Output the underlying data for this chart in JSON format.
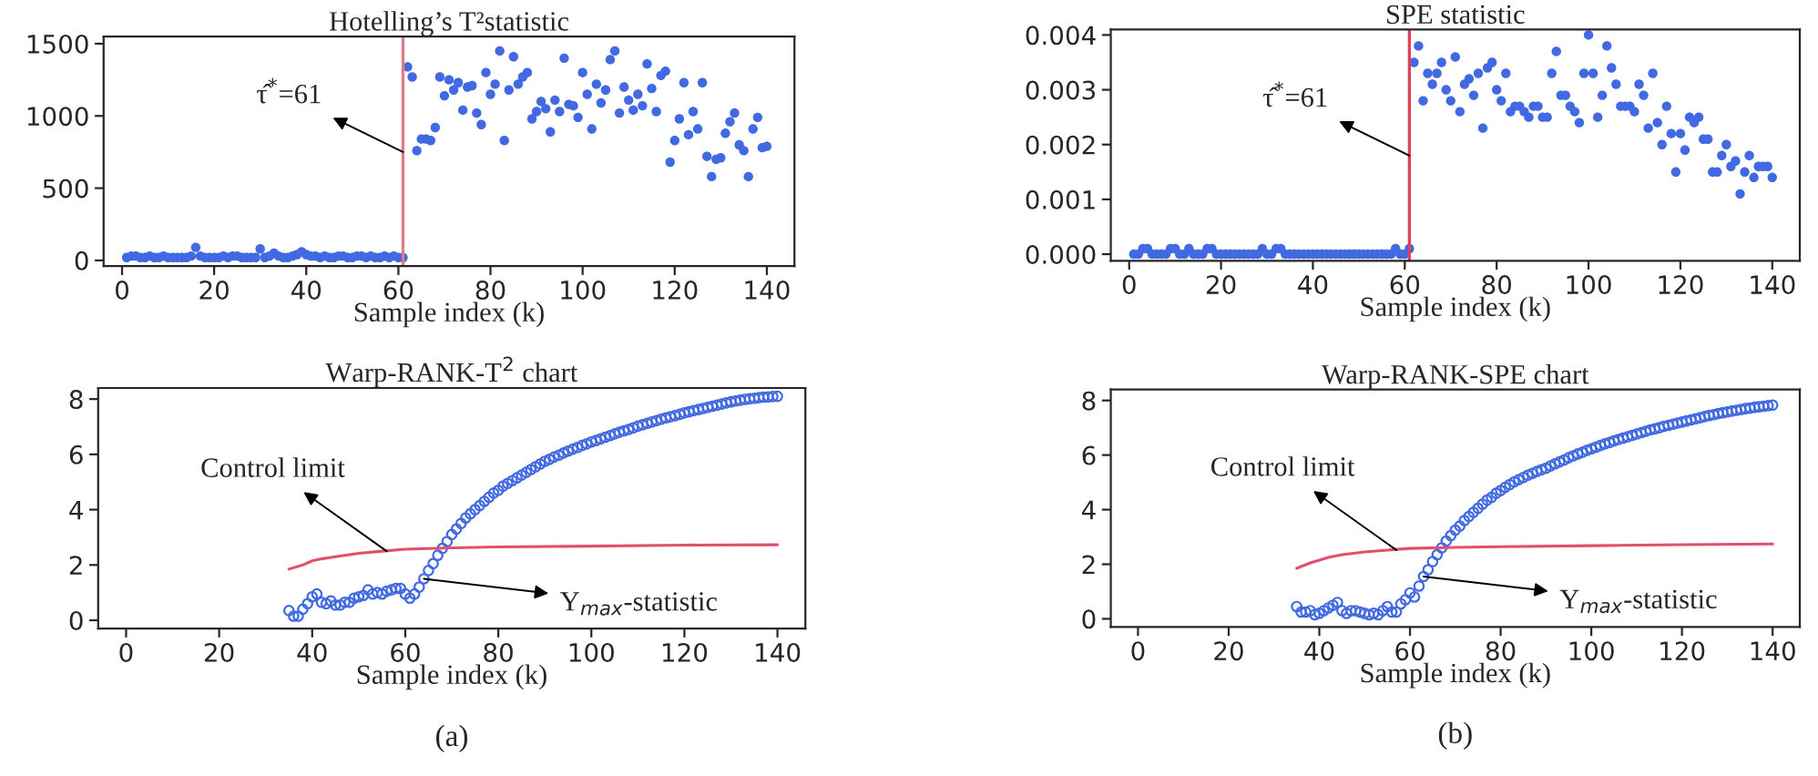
{
  "chart_data": [
    {
      "type": "scatter",
      "title": "Hotelling’s T²statistic",
      "xlabel": "Sample index (k)",
      "marker": "circle",
      "x": [
        1,
        2,
        3,
        4,
        5,
        6,
        7,
        8,
        9,
        10,
        11,
        12,
        13,
        14,
        15,
        16,
        17,
        18,
        19,
        20,
        21,
        22,
        23,
        24,
        25,
        26,
        27,
        28,
        29,
        30,
        31,
        32,
        33,
        34,
        35,
        36,
        37,
        38,
        39,
        40,
        41,
        42,
        43,
        44,
        45,
        46,
        47,
        48,
        49,
        50,
        51,
        52,
        53,
        54,
        55,
        56,
        57,
        58,
        59,
        60,
        61,
        62,
        63,
        64,
        65,
        66,
        67,
        68,
        69,
        70,
        71,
        72,
        73,
        74,
        75,
        76,
        77,
        78,
        79,
        80,
        81,
        82,
        83,
        84,
        85,
        86,
        87,
        88,
        89,
        90,
        91,
        92,
        93,
        94,
        95,
        96,
        97,
        98,
        99,
        100,
        101,
        102,
        103,
        104,
        105,
        106,
        107,
        108,
        109,
        110,
        111,
        112,
        113,
        114,
        115,
        116,
        117,
        118,
        119,
        120,
        121,
        122,
        123,
        124,
        125,
        126,
        127,
        128,
        129,
        130,
        131,
        132,
        133,
        134,
        135,
        136,
        137,
        138,
        139,
        140
      ],
      "series": [
        {
          "color": "#4169e1",
          "values": [
            20,
            30,
            30,
            20,
            20,
            30,
            20,
            20,
            30,
            20,
            20,
            20,
            20,
            20,
            30,
            90,
            30,
            20,
            20,
            20,
            20,
            30,
            20,
            30,
            30,
            20,
            20,
            20,
            20,
            80,
            20,
            30,
            50,
            30,
            20,
            20,
            30,
            40,
            60,
            40,
            30,
            30,
            20,
            30,
            20,
            20,
            30,
            30,
            20,
            20,
            30,
            30,
            20,
            30,
            20,
            20,
            30,
            20,
            30,
            20,
            20,
            1340,
            1270,
            760,
            840,
            840,
            830,
            920,
            1270,
            1140,
            1250,
            1180,
            1230,
            1040,
            1200,
            1210,
            1020,
            940,
            1300,
            1150,
            1220,
            1450,
            830,
            1180,
            1410,
            1220,
            1270,
            1300,
            980,
            1030,
            1100,
            1050,
            890,
            1110,
            1030,
            1400,
            1080,
            1070,
            990,
            1300,
            1150,
            910,
            1220,
            1090,
            1180,
            1390,
            1450,
            1020,
            1200,
            1110,
            1040,
            1150,
            1070,
            1360,
            1190,
            1030,
            1280,
            1310,
            680,
            830,
            980,
            1230,
            870,
            1030,
            910,
            1230,
            720,
            580,
            700,
            710,
            880,
            960,
            1020,
            800,
            760,
            580,
            910,
            990,
            780,
            790
          ]
        }
      ],
      "ref_lines": [
        {
          "axis": "x",
          "value": 61,
          "color": "#e07b8a"
        }
      ],
      "annotations": [
        {
          "text": "τ̂$^{*}$=61",
          "x": 61,
          "y": 750
        }
      ],
      "xlim": [
        -4,
        146
      ],
      "xticks": [
        0,
        20,
        40,
        60,
        80,
        100,
        120,
        140
      ],
      "ylim": [
        -40,
        1550
      ],
      "yticks": [
        0,
        500,
        1000,
        1500
      ]
    },
    {
      "type": "scatter",
      "title": "SPE statistic",
      "xlabel": "Sample index (k)",
      "marker": "circle",
      "x": [
        1,
        2,
        3,
        4,
        5,
        6,
        7,
        8,
        9,
        10,
        11,
        12,
        13,
        14,
        15,
        16,
        17,
        18,
        19,
        20,
        21,
        22,
        23,
        24,
        25,
        26,
        27,
        28,
        29,
        30,
        31,
        32,
        33,
        34,
        35,
        36,
        37,
        38,
        39,
        40,
        41,
        42,
        43,
        44,
        45,
        46,
        47,
        48,
        49,
        50,
        51,
        52,
        53,
        54,
        55,
        56,
        57,
        58,
        59,
        60,
        61,
        62,
        63,
        64,
        65,
        66,
        67,
        68,
        69,
        70,
        71,
        72,
        73,
        74,
        75,
        76,
        77,
        78,
        79,
        80,
        81,
        82,
        83,
        84,
        85,
        86,
        87,
        88,
        89,
        90,
        91,
        92,
        93,
        94,
        95,
        96,
        97,
        98,
        99,
        100,
        101,
        102,
        103,
        104,
        105,
        106,
        107,
        108,
        109,
        110,
        111,
        112,
        113,
        114,
        115,
        116,
        117,
        118,
        119,
        120,
        121,
        122,
        123,
        124,
        125,
        126,
        127,
        128,
        129,
        130,
        131,
        132,
        133,
        134,
        135,
        136,
        137,
        138,
        139,
        140
      ],
      "series": [
        {
          "color": "#4169e1",
          "values": [
            0.0,
            0.0,
            0.0001,
            0.0001,
            0.0,
            0.0,
            0.0,
            0.0,
            0.0001,
            0.0001,
            0.0,
            0.0,
            0.0001,
            0.0,
            0.0,
            0.0,
            0.0001,
            0.0001,
            0.0,
            0.0,
            0.0,
            0.0,
            0.0,
            0.0,
            0.0,
            0.0,
            0.0,
            0.0,
            0.0001,
            0.0,
            0.0,
            0.0001,
            0.0001,
            0.0,
            0.0,
            0.0,
            0.0,
            0.0,
            0.0,
            0.0,
            0.0,
            0.0,
            0.0,
            0.0,
            0.0,
            0.0,
            0.0,
            0.0,
            0.0,
            0.0,
            0.0,
            0.0,
            0.0,
            0.0,
            0.0,
            0.0,
            0.0,
            0.0001,
            0.0,
            0.0,
            0.0001,
            0.0035,
            0.0038,
            0.0028,
            0.0033,
            0.0031,
            0.0033,
            0.0035,
            0.003,
            0.0028,
            0.0036,
            0.0026,
            0.0031,
            0.0032,
            0.0029,
            0.0033,
            0.0023,
            0.0034,
            0.0035,
            0.003,
            0.0028,
            0.0033,
            0.0026,
            0.0027,
            0.0027,
            0.0026,
            0.0025,
            0.0027,
            0.0027,
            0.0025,
            0.0025,
            0.0033,
            0.0037,
            0.0029,
            0.0029,
            0.0027,
            0.0026,
            0.0024,
            0.0033,
            0.004,
            0.0033,
            0.0025,
            0.0029,
            0.0038,
            0.0034,
            0.0031,
            0.0027,
            0.0027,
            0.0027,
            0.0026,
            0.0031,
            0.0029,
            0.0023,
            0.0033,
            0.0024,
            0.002,
            0.0027,
            0.0022,
            0.0015,
            0.0022,
            0.0019,
            0.0025,
            0.0024,
            0.0025,
            0.0021,
            0.0021,
            0.0015,
            0.0015,
            0.0018,
            0.002,
            0.0016,
            0.0017,
            0.0011,
            0.0015,
            0.0018,
            0.0014,
            0.0016,
            0.0016,
            0.0016,
            0.0014
          ]
        }
      ],
      "ref_lines": [
        {
          "axis": "x",
          "value": 61,
          "color": "#e0405a"
        }
      ],
      "annotations": [
        {
          "text": "τ̂$^{*}$=61",
          "x": 61,
          "y": 0.0018
        }
      ],
      "xlim": [
        -4,
        146
      ],
      "xticks": [
        0,
        20,
        40,
        60,
        80,
        100,
        120,
        140
      ],
      "ylim": [
        -0.00012,
        0.0041
      ],
      "yticks": [
        {
          "value": 0,
          "label": "0.000"
        },
        {
          "value": 0.001,
          "label": "0.001"
        },
        {
          "value": 0.002,
          "label": "0.002"
        },
        {
          "value": 0.003,
          "label": "0.003"
        },
        {
          "value": 0.004,
          "label": "0.004"
        }
      ]
    },
    {
      "type": "scatter",
      "title": "Warp-RANK-T$^{2}$ chart",
      "xlabel": "Sample index (k)",
      "series": [
        {
          "color": "#4169e1",
          "marker": "circle",
          "x": [
            35,
            36,
            37,
            38,
            39,
            40,
            41,
            42,
            43,
            44,
            45,
            46,
            47,
            48,
            49,
            50,
            51,
            52,
            53,
            54,
            55,
            56,
            57,
            58,
            59,
            60,
            61,
            62,
            63,
            64,
            65,
            66,
            67,
            68,
            69,
            70,
            71,
            72,
            73,
            74,
            75,
            76,
            77,
            78,
            79,
            80,
            81,
            82,
            83,
            84,
            85,
            86,
            87,
            88,
            89,
            90,
            91,
            92,
            93,
            94,
            95,
            96,
            97,
            98,
            99,
            100,
            101,
            102,
            103,
            104,
            105,
            106,
            107,
            108,
            109,
            110,
            111,
            112,
            113,
            114,
            115,
            116,
            117,
            118,
            119,
            120,
            121,
            122,
            123,
            124,
            125,
            126,
            127,
            128,
            129,
            130,
            131,
            132,
            133,
            134,
            135,
            136,
            137,
            138,
            139,
            140
          ],
          "values": [
            0.35,
            0.15,
            0.15,
            0.4,
            0.6,
            0.85,
            0.95,
            0.65,
            0.6,
            0.7,
            0.55,
            0.55,
            0.65,
            0.65,
            0.8,
            0.85,
            0.9,
            1.1,
            0.95,
            1.0,
            0.95,
            1.05,
            1.1,
            1.15,
            1.15,
            0.95,
            0.8,
            0.95,
            1.2,
            1.5,
            1.8,
            2.05,
            2.35,
            2.6,
            2.85,
            3.1,
            3.3,
            3.5,
            3.7,
            3.85,
            4.0,
            4.15,
            4.3,
            4.45,
            4.6,
            4.7,
            4.85,
            4.95,
            5.05,
            5.15,
            5.25,
            5.35,
            5.45,
            5.55,
            5.65,
            5.75,
            5.82,
            5.9,
            5.97,
            6.05,
            6.12,
            6.19,
            6.25,
            6.32,
            6.38,
            6.45,
            6.5,
            6.56,
            6.62,
            6.68,
            6.74,
            6.8,
            6.85,
            6.9,
            6.96,
            7.02,
            7.07,
            7.12,
            7.17,
            7.22,
            7.27,
            7.32,
            7.36,
            7.4,
            7.45,
            7.5,
            7.54,
            7.58,
            7.62,
            7.66,
            7.7,
            7.74,
            7.78,
            7.82,
            7.86,
            7.9,
            7.93,
            7.96,
            7.99,
            8.01,
            8.03,
            8.05,
            8.07,
            8.08,
            8.09,
            8.1
          ]
        },
        {
          "type": "line",
          "color": "#e0506a",
          "line_style": "solid",
          "x": [
            35,
            38,
            40,
            42,
            45,
            50,
            55,
            60,
            70,
            80,
            100,
            120,
            140
          ],
          "values": [
            1.85,
            2.0,
            2.15,
            2.22,
            2.3,
            2.42,
            2.5,
            2.57,
            2.62,
            2.65,
            2.68,
            2.72,
            2.73
          ]
        }
      ],
      "annotations": [
        {
          "text": "Control limit",
          "x": 56,
          "y": 2.5
        },
        {
          "text": "Y$_{max}$-statistic",
          "x": 64,
          "y": 1.5
        },
        "(a)"
      ],
      "xlim": [
        -6,
        146
      ],
      "xticks": [
        0,
        20,
        40,
        60,
        80,
        100,
        120,
        140
      ],
      "ylim": [
        -0.3,
        8.4
      ],
      "yticks": [
        0,
        2,
        4,
        6,
        8
      ]
    },
    {
      "type": "scatter",
      "title": "Warp-RANK-SPE chart",
      "xlabel": "Sample index (k)",
      "series": [
        {
          "color": "#4169e1",
          "marker": "circle",
          "x": [
            35,
            36,
            37,
            38,
            39,
            40,
            41,
            42,
            43,
            44,
            45,
            46,
            47,
            48,
            49,
            50,
            51,
            52,
            53,
            54,
            55,
            56,
            57,
            58,
            59,
            60,
            61,
            62,
            63,
            64,
            65,
            66,
            67,
            68,
            69,
            70,
            71,
            72,
            73,
            74,
            75,
            76,
            77,
            78,
            79,
            80,
            81,
            82,
            83,
            84,
            85,
            86,
            87,
            88,
            89,
            90,
            91,
            92,
            93,
            94,
            95,
            96,
            97,
            98,
            99,
            100,
            101,
            102,
            103,
            104,
            105,
            106,
            107,
            108,
            109,
            110,
            111,
            112,
            113,
            114,
            115,
            116,
            117,
            118,
            119,
            120,
            121,
            122,
            123,
            124,
            125,
            126,
            127,
            128,
            129,
            130,
            131,
            132,
            133,
            134,
            135,
            136,
            137,
            138,
            139,
            140
          ],
          "values": [
            0.45,
            0.25,
            0.25,
            0.3,
            0.15,
            0.2,
            0.3,
            0.4,
            0.5,
            0.6,
            0.3,
            0.2,
            0.3,
            0.3,
            0.25,
            0.2,
            0.15,
            0.2,
            0.15,
            0.3,
            0.45,
            0.25,
            0.25,
            0.55,
            0.7,
            0.95,
            0.8,
            1.2,
            1.55,
            1.8,
            2.1,
            2.35,
            2.6,
            2.85,
            3.05,
            3.25,
            3.4,
            3.6,
            3.75,
            3.9,
            4.05,
            4.2,
            4.35,
            4.45,
            4.6,
            4.7,
            4.82,
            4.92,
            5.02,
            5.1,
            5.18,
            5.26,
            5.33,
            5.4,
            5.46,
            5.52,
            5.6,
            5.68,
            5.75,
            5.82,
            5.9,
            5.97,
            6.04,
            6.1,
            6.17,
            6.23,
            6.29,
            6.35,
            6.41,
            6.46,
            6.52,
            6.57,
            6.62,
            6.67,
            6.72,
            6.77,
            6.82,
            6.87,
            6.92,
            6.96,
            7.0,
            7.05,
            7.09,
            7.13,
            7.17,
            7.21,
            7.25,
            7.29,
            7.33,
            7.37,
            7.41,
            7.45,
            7.48,
            7.52,
            7.55,
            7.58,
            7.61,
            7.64,
            7.67,
            7.7,
            7.72,
            7.75,
            7.77,
            7.79,
            7.81,
            7.83
          ]
        },
        {
          "type": "line",
          "color": "#e0506a",
          "line_style": "solid",
          "x": [
            35,
            38,
            40,
            42,
            45,
            50,
            55,
            60,
            70,
            80,
            100,
            120,
            140
          ],
          "values": [
            1.85,
            2.05,
            2.15,
            2.25,
            2.35,
            2.45,
            2.52,
            2.58,
            2.62,
            2.64,
            2.68,
            2.72,
            2.74
          ]
        }
      ],
      "annotations": [
        {
          "text": "Control limit",
          "x": 57,
          "y": 2.52
        },
        {
          "text": "Y$_{max}$-statistic",
          "x": 63,
          "y": 1.55
        },
        "(b)"
      ],
      "xlim": [
        -6,
        146
      ],
      "xticks": [
        0,
        20,
        40,
        60,
        80,
        100,
        120,
        140
      ],
      "ylim": [
        -0.3,
        8.4
      ],
      "yticks": [
        0,
        2,
        4,
        6,
        8
      ]
    }
  ]
}
